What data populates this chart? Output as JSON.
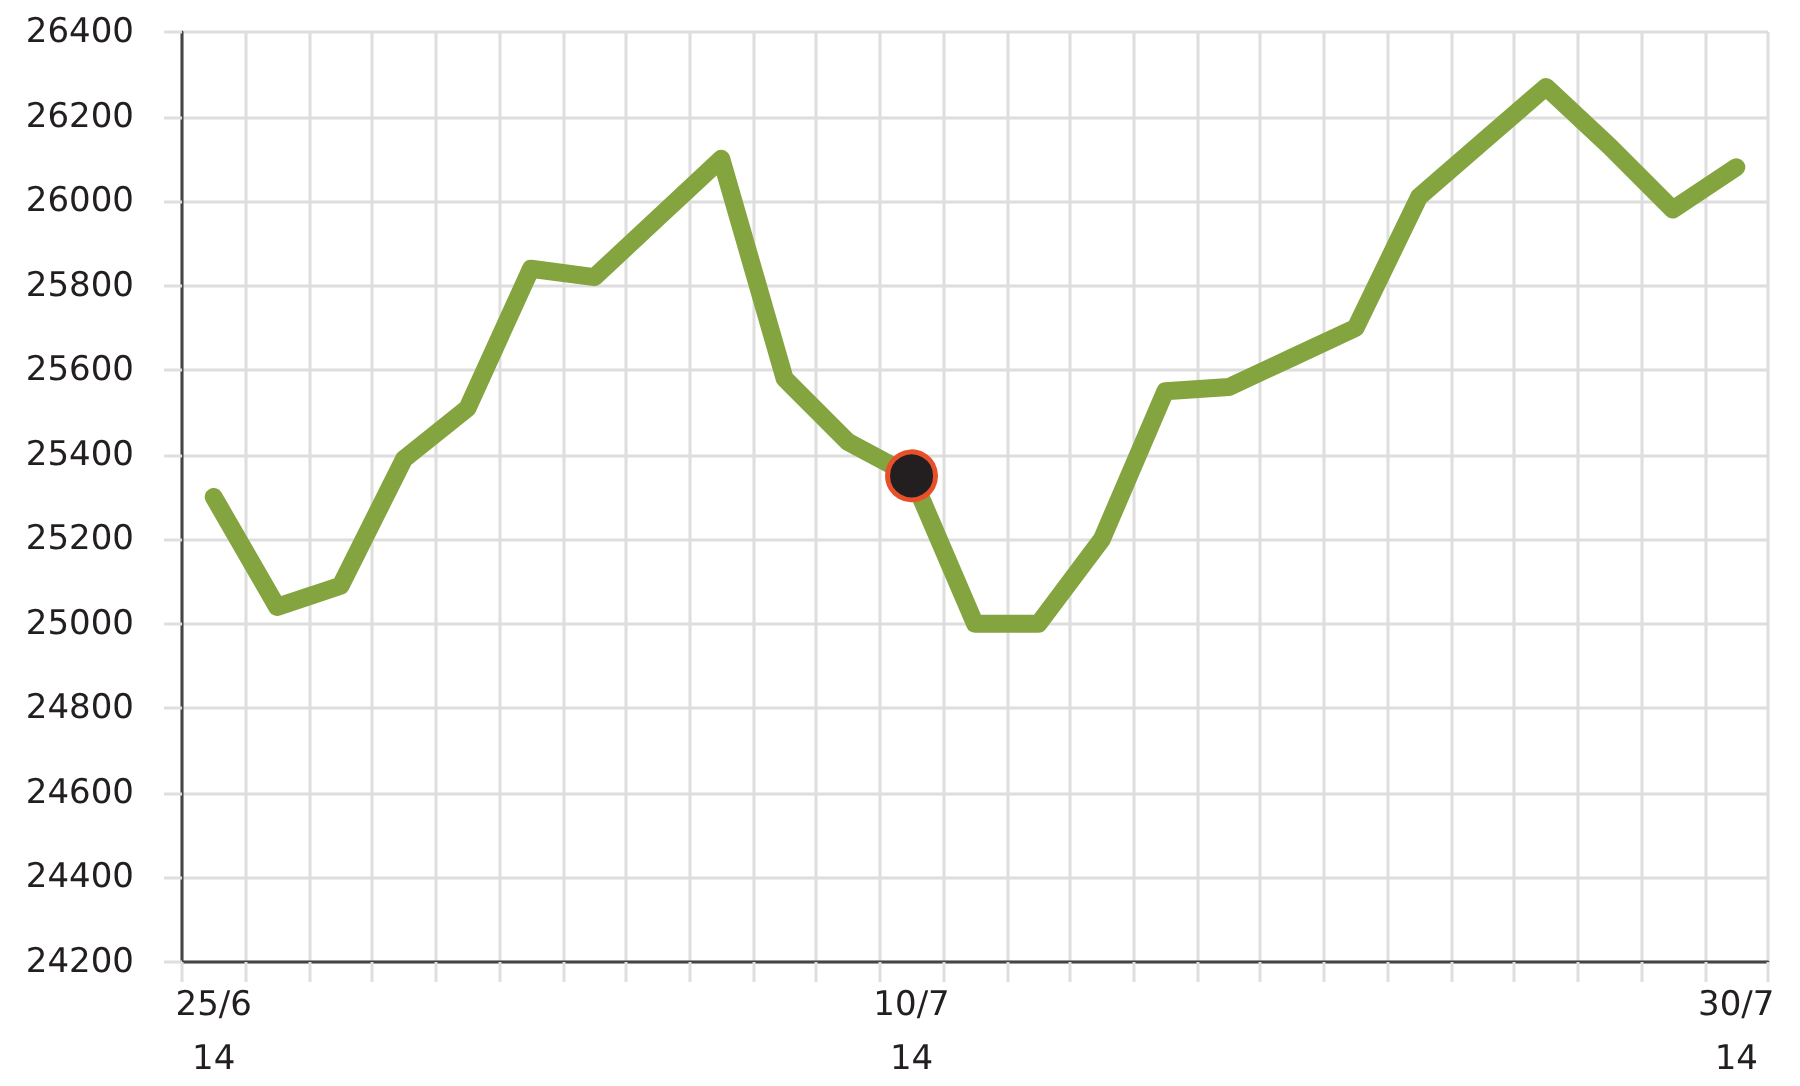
{
  "chart_data": {
    "type": "line",
    "categories": [
      "25/6\n14",
      null,
      null,
      null,
      null,
      null,
      null,
      null,
      null,
      null,
      null,
      "10/7\n14",
      null,
      null,
      null,
      null,
      null,
      null,
      null,
      null,
      null,
      null,
      null,
      null,
      "30/7\n14"
    ],
    "series": [
      {
        "color": "#84a43f",
        "values": [
          25300,
          25040,
          25090,
          25390,
          25510,
          25840,
          25820,
          25960,
          26100,
          25580,
          25430,
          25350,
          25000,
          25000,
          25200,
          25550,
          25560,
          25630,
          25700,
          26010,
          26140,
          26270,
          26130,
          25980,
          26080
        ]
      },
      {
        "type": "scatter",
        "marker": "circle",
        "color": "#231f20",
        "x": [
          "10/7\n14"
        ],
        "values": [
          25350
        ]
      }
    ],
    "ylim": [
      24200,
      26400
    ],
    "yticks": [
      24200,
      24400,
      24600,
      24800,
      25000,
      25200,
      25400,
      25600,
      25800,
      26000,
      26200,
      26400
    ],
    "grid": true,
    "marker": "none",
    "line_style": "solid"
  }
}
